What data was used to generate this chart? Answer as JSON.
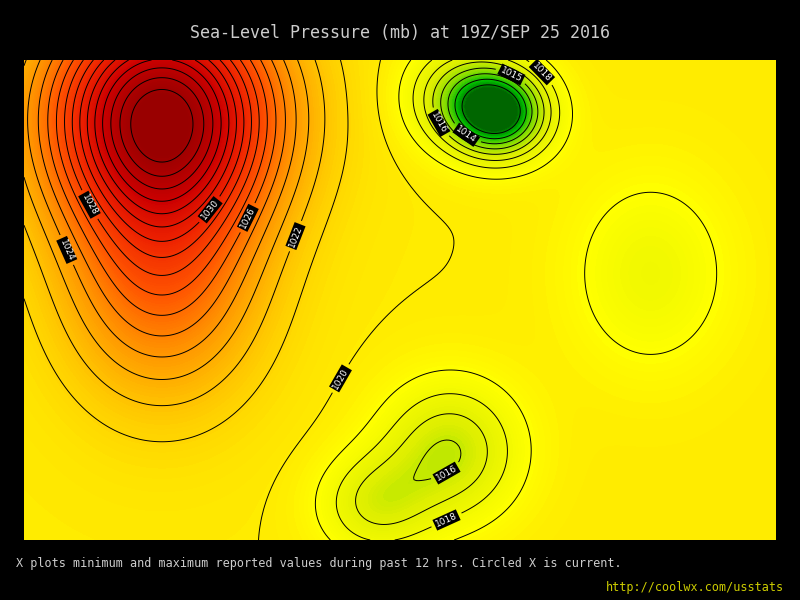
{
  "title": "Sea-Level Pressure (mb) at 19Z/SEP 25 2016",
  "footnote": "X plots minimum and maximum reported values during past 12 hrs. Circled X is current.",
  "url": "http://coolwx.com/usstats",
  "background_color": "#000000",
  "text_color": "#cccccc",
  "url_color": "#cccc00",
  "figsize": [
    8.0,
    6.0
  ],
  "dpi": 100,
  "contour_levels": [
    1012,
    1013,
    1014,
    1015,
    1016,
    1017,
    1018,
    1019,
    1020,
    1021,
    1022,
    1023,
    1024,
    1025,
    1026,
    1027,
    1028,
    1029,
    1030,
    1031,
    1032,
    1033,
    1034,
    1035,
    1036
  ],
  "labeled_contours": [
    1014,
    1015,
    1016,
    1018,
    1020,
    1022,
    1024,
    1026,
    1028,
    1030
  ],
  "colormap_colors": [
    [
      0.0,
      "#006600"
    ],
    [
      0.05,
      "#00bb00"
    ],
    [
      0.12,
      "#88dd00"
    ],
    [
      0.2,
      "#ddee00"
    ],
    [
      0.3,
      "#ffff00"
    ],
    [
      0.4,
      "#ffcc00"
    ],
    [
      0.5,
      "#ff9900"
    ],
    [
      0.62,
      "#ff5500"
    ],
    [
      0.74,
      "#ee2200"
    ],
    [
      0.86,
      "#cc0000"
    ],
    [
      1.0,
      "#990000"
    ]
  ],
  "extent": [
    -125,
    -65,
    23,
    50
  ],
  "central_longitude": -96,
  "central_latitude": 39
}
